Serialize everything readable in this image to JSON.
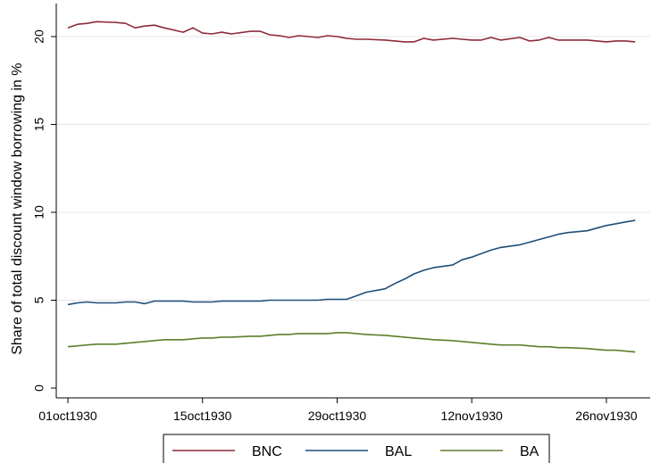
{
  "chart_data": {
    "type": "line",
    "title": "",
    "xlabel": "",
    "ylabel": "Share of total discount window borrowing in %",
    "ylim": [
      0,
      21.5
    ],
    "xlim": [
      "1930-10-01",
      "1930-11-30"
    ],
    "x_tick_labels": [
      "01oct1930",
      "15oct1930",
      "29oct1930",
      "12nov1930",
      "26nov1930"
    ],
    "x_tick_dates": [
      "1930-10-01",
      "1930-10-15",
      "1930-10-29",
      "1930-11-12",
      "1930-11-26"
    ],
    "y_ticks": [
      0,
      5,
      10,
      15,
      20
    ],
    "grid": "horizontal",
    "legend_position": "bottom",
    "x": [
      "1930-10-01",
      "1930-10-02",
      "1930-10-03",
      "1930-10-04",
      "1930-10-06",
      "1930-10-07",
      "1930-10-08",
      "1930-10-09",
      "1930-10-10",
      "1930-10-11",
      "1930-10-13",
      "1930-10-14",
      "1930-10-15",
      "1930-10-16",
      "1930-10-17",
      "1930-10-18",
      "1930-10-20",
      "1930-10-21",
      "1930-10-22",
      "1930-10-23",
      "1930-10-24",
      "1930-10-25",
      "1930-10-27",
      "1930-10-28",
      "1930-10-29",
      "1930-10-30",
      "1930-10-31",
      "1930-11-01",
      "1930-11-03",
      "1930-11-04",
      "1930-11-05",
      "1930-11-06",
      "1930-11-07",
      "1930-11-08",
      "1930-11-10",
      "1930-11-11",
      "1930-11-12",
      "1930-11-13",
      "1930-11-14",
      "1930-11-15",
      "1930-11-17",
      "1930-11-18",
      "1930-11-19",
      "1930-11-20",
      "1930-11-21",
      "1930-11-22",
      "1930-11-24",
      "1930-11-25",
      "1930-11-26",
      "1930-11-27",
      "1930-11-28",
      "1930-11-29"
    ],
    "series": [
      {
        "name": "BNC",
        "color": "#8e2a3a",
        "values": [
          20.5,
          20.7,
          20.75,
          20.85,
          20.8,
          20.75,
          20.5,
          20.6,
          20.65,
          20.5,
          20.25,
          20.5,
          20.2,
          20.15,
          20.25,
          20.15,
          20.3,
          20.3,
          20.1,
          20.05,
          19.95,
          20.05,
          19.95,
          20.05,
          20.0,
          19.9,
          19.85,
          19.85,
          19.8,
          19.75,
          19.7,
          19.7,
          19.9,
          19.8,
          19.9,
          19.85,
          19.8,
          19.8,
          19.95,
          19.8,
          19.95,
          19.75,
          19.8,
          19.95,
          19.8,
          19.8,
          19.8,
          19.75,
          19.7,
          19.75,
          19.75,
          19.7
        ]
      },
      {
        "name": "BAL",
        "color": "#1f4e79",
        "values": [
          4.75,
          4.85,
          4.9,
          4.85,
          4.85,
          4.9,
          4.9,
          4.8,
          4.95,
          4.95,
          4.95,
          4.9,
          4.9,
          4.9,
          4.95,
          4.95,
          4.95,
          4.95,
          5.0,
          5.0,
          5.0,
          5.0,
          5.0,
          5.05,
          5.05,
          5.05,
          5.25,
          5.45,
          5.65,
          5.95,
          6.2,
          6.5,
          6.7,
          6.85,
          7.0,
          7.3,
          7.45,
          7.65,
          7.85,
          8.0,
          8.15,
          8.3,
          8.45,
          8.6,
          8.75,
          8.85,
          8.95,
          9.1,
          9.25,
          9.35,
          9.45,
          9.55
        ]
      },
      {
        "name": "BA",
        "color": "#5b7f2b",
        "values": [
          2.35,
          2.4,
          2.45,
          2.5,
          2.5,
          2.55,
          2.6,
          2.65,
          2.7,
          2.75,
          2.75,
          2.8,
          2.85,
          2.85,
          2.9,
          2.9,
          2.95,
          2.95,
          3.0,
          3.05,
          3.05,
          3.1,
          3.1,
          3.1,
          3.15,
          3.15,
          3.1,
          3.05,
          3.0,
          2.95,
          2.9,
          2.85,
          2.8,
          2.75,
          2.7,
          2.65,
          2.6,
          2.55,
          2.5,
          2.45,
          2.45,
          2.4,
          2.35,
          2.35,
          2.3,
          2.3,
          2.25,
          2.2,
          2.15,
          2.15,
          2.1,
          2.05
        ]
      }
    ]
  }
}
